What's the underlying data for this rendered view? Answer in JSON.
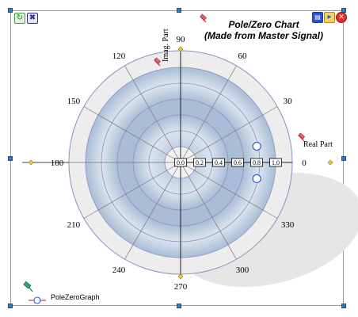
{
  "chart_data": {
    "type": "scatter",
    "coordinate_system": "polar",
    "title": "Pole/Zero Chart",
    "subtitle": "(Made from Master Signal)",
    "radial_axis_label": "Real Part",
    "angular_axis_label": "Imag. Part",
    "radial_range": [
      0,
      1.0
    ],
    "radial_ticks": [
      "0.0",
      "0.2",
      "0.4",
      "0.6",
      "0.8",
      "1.0"
    ],
    "angle_ticks": [
      "0",
      "30",
      "60",
      "90",
      "120",
      "150",
      "180",
      "210",
      "240",
      "270",
      "300",
      "330"
    ],
    "grid": true,
    "series": [
      {
        "name": "PoleZeroGraph",
        "marker": "circle",
        "color": "#3355dd",
        "points": [
          {
            "r": 0.82,
            "theta": 12
          },
          {
            "r": 0.82,
            "theta": -12
          }
        ]
      }
    ],
    "legend": {
      "position": "bottom-left",
      "entries": [
        "PoleZeroGraph"
      ]
    },
    "colors": {
      "outer_band": "#ededed",
      "blue_band_edge": "#a9bdd6",
      "blue_band_mid": "#dbe4ef",
      "grid_line": "#8b8fbf",
      "marker": "#3355dd"
    }
  },
  "toolbar": {
    "left_icons": [
      "refresh-icon",
      "fit-icon"
    ],
    "right_icons": [
      "save-icon",
      "open-folder-icon",
      "close-icon"
    ]
  },
  "legend_label": "PoleZeroGraph"
}
